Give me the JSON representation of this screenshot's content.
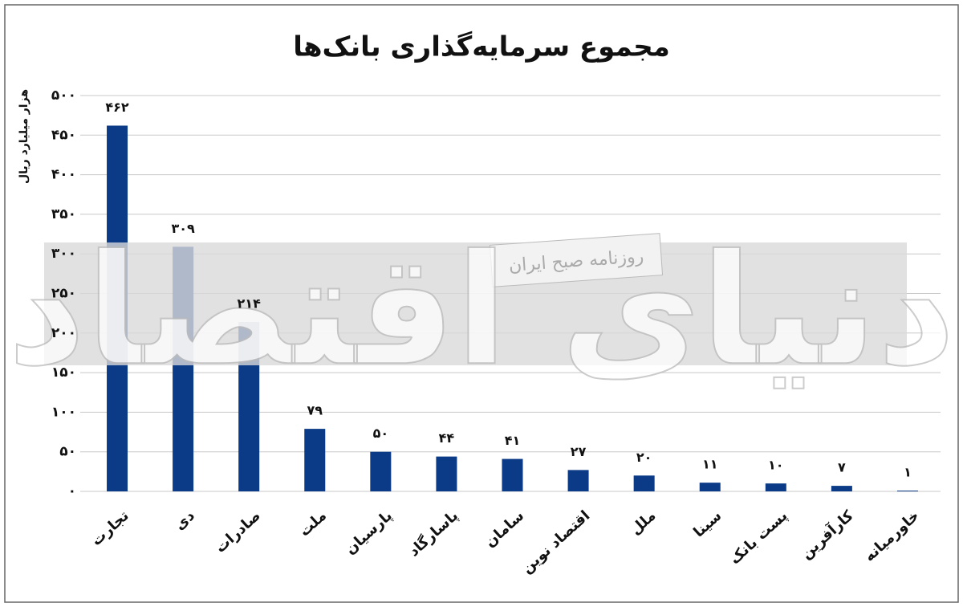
{
  "chart_data": {
    "type": "bar",
    "title": "مجموع سرمایه‌گذاری بانک‌ها",
    "y_label": "هزار میلیارد ریال",
    "watermark": {
      "brand": "دنیای اقتصاد",
      "tagline": "روزنامه صبح ایران"
    },
    "categories": [
      "تجارت",
      "دی",
      "صادرات",
      "ملت",
      "پارسیان",
      "پاسارگاد",
      "سامان",
      "اقتصاد نوین",
      "ملل",
      "سینا",
      "پست بانک",
      "کارآفرین",
      "خاورمیانه"
    ],
    "values": [
      462,
      309,
      214,
      79,
      50,
      44,
      41,
      27,
      20,
      11,
      10,
      7,
      1
    ],
    "value_labels": [
      "۴۶۲",
      "۳۰۹",
      "۲۱۴",
      "۷۹",
      "۵۰",
      "۴۴",
      "۴۱",
      "۲۷",
      "۲۰",
      "۱۱",
      "۱۰",
      "۷",
      "۱"
    ],
    "color": "#0b3a86",
    "ylim": [
      0,
      500
    ],
    "yticks": [
      {
        "value": 0,
        "label": "۰"
      },
      {
        "value": 50,
        "label": "۵۰"
      },
      {
        "value": 100,
        "label": "۱۰۰"
      },
      {
        "value": 150,
        "label": "۱۵۰"
      },
      {
        "value": 200,
        "label": "۲۰۰"
      },
      {
        "value": 250,
        "label": "۲۵۰"
      },
      {
        "value": 300,
        "label": "۳۰۰"
      },
      {
        "value": 350,
        "label": "۳۵۰"
      },
      {
        "value": 400,
        "label": "۴۰۰"
      },
      {
        "value": 450,
        "label": "۴۵۰"
      },
      {
        "value": 500,
        "label": "۵۰۰"
      }
    ],
    "grid": true
  }
}
